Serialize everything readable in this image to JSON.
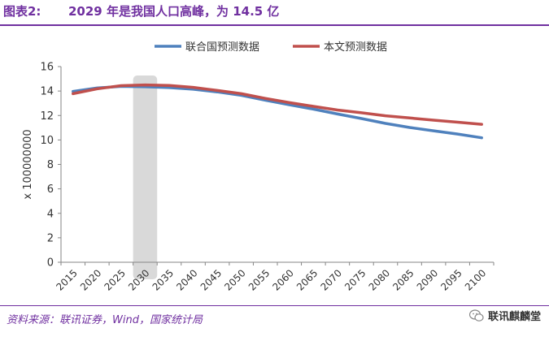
{
  "header": {
    "label": "图表2:",
    "title": "2029 年是我国人口高峰，为 14.5 亿"
  },
  "chart_data": {
    "type": "line",
    "x": [
      "2015",
      "2020",
      "2025",
      "2030",
      "2035",
      "2040",
      "2045",
      "2050",
      "2055",
      "2060",
      "2065",
      "2070",
      "2075",
      "2080",
      "2085",
      "2090",
      "2095",
      "2100"
    ],
    "ylabel": "x 100000000",
    "ylim": [
      0,
      16
    ],
    "yticks": [
      0,
      2,
      4,
      6,
      8,
      10,
      12,
      14,
      16
    ],
    "grid": false,
    "legend_position": "top",
    "highlight_band": [
      "2025",
      "2030"
    ],
    "series": [
      {
        "name": "联合国预测数据",
        "color": "#4f81bd",
        "values": [
          13.97,
          14.25,
          14.38,
          14.35,
          14.28,
          14.15,
          13.93,
          13.65,
          13.25,
          12.88,
          12.52,
          12.12,
          11.75,
          11.35,
          11.02,
          10.75,
          10.48,
          10.18
        ]
      },
      {
        "name": "本文预测数据",
        "color": "#c0504d",
        "values": [
          13.78,
          14.18,
          14.44,
          14.5,
          14.46,
          14.3,
          14.05,
          13.78,
          13.4,
          13.05,
          12.75,
          12.45,
          12.22,
          11.98,
          11.8,
          11.62,
          11.45,
          11.28
        ]
      }
    ]
  },
  "footer": {
    "source": "资料来源：联讯证券，Wind，国家统计局",
    "brand": "联讯麒麟堂"
  }
}
